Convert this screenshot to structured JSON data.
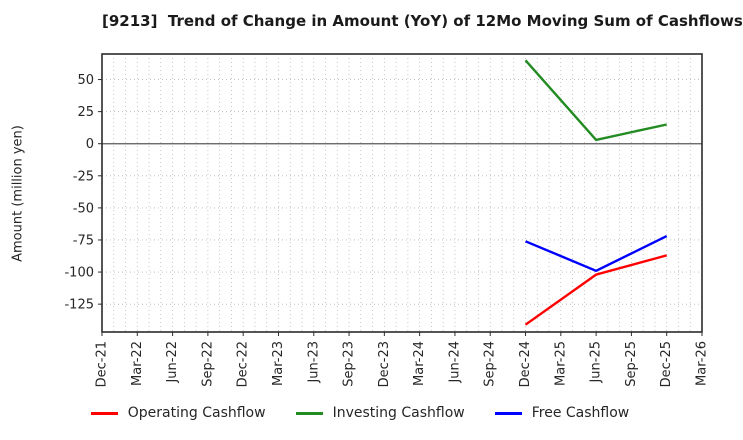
{
  "title": "[9213]  Trend of Change in Amount (YoY) of 12Mo Moving Sum of Cashflows",
  "chart_data": {
    "type": "line",
    "title": "[9213]  Trend of Change in Amount (YoY) of 12Mo Moving Sum of Cashflows",
    "xlabel": "",
    "ylabel": "Amount (million yen)",
    "x_tick_labels": [
      "Dec-21",
      "Mar-22",
      "Jun-22",
      "Sep-22",
      "Dec-22",
      "Mar-23",
      "Jun-23",
      "Sep-23",
      "Dec-23",
      "Mar-24",
      "Jun-24",
      "Sep-24",
      "Dec-24",
      "Mar-25",
      "Jun-25",
      "Sep-25",
      "Dec-25",
      "Mar-26"
    ],
    "y_ticks": [
      50,
      25,
      0,
      -25,
      -50,
      -75,
      -100,
      -125
    ],
    "ylim": [
      -146.7,
      69.9
    ],
    "grid": true,
    "minor_vertical_gridlines": "monthly",
    "legend_position": "bottom-center",
    "series": [
      {
        "name": "Operating Cashflow",
        "color": "#ff0000",
        "points": [
          {
            "x": "Dec-24",
            "y": -141
          },
          {
            "x": "Jun-25",
            "y": -102
          },
          {
            "x": "Dec-25",
            "y": -87
          }
        ]
      },
      {
        "name": "Investing Cashflow",
        "color": "#228b22",
        "points": [
          {
            "x": "Dec-24",
            "y": 65
          },
          {
            "x": "Jun-25",
            "y": 3
          },
          {
            "x": "Dec-25",
            "y": 15
          }
        ]
      },
      {
        "name": "Free Cashflow",
        "color": "#0000ff",
        "points": [
          {
            "x": "Dec-24",
            "y": -76
          },
          {
            "x": "Jun-25",
            "y": -99
          },
          {
            "x": "Dec-25",
            "y": -72
          }
        ]
      }
    ],
    "style": {
      "grid_color": "#b8b8b8",
      "zero_line_color": "#5a5a5a",
      "border_color": "#2b2b2b",
      "tick_label_color": "#262626",
      "line_width": 2.4
    }
  }
}
